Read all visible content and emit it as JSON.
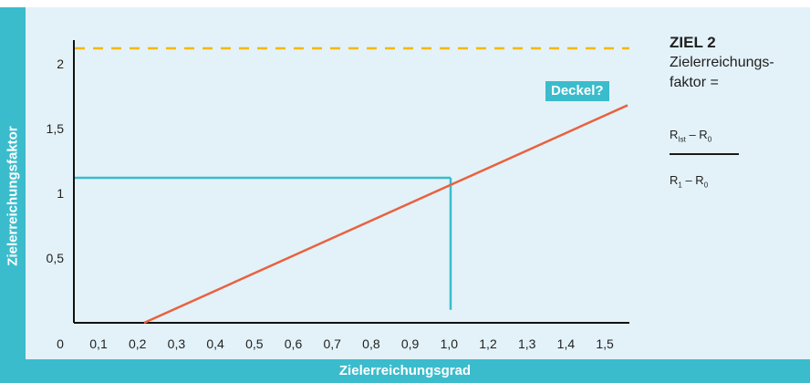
{
  "chart_data": {
    "type": "line",
    "xlabel": "Zielerreichungsgrad",
    "ylabel": "Zielerreichungsfaktor",
    "x_ticks": [
      "0",
      "0,1",
      "0,2",
      "0,3",
      "0,4",
      "0,5",
      "0,6",
      "0,7",
      "0,8",
      "0,9",
      "1,0",
      "1,2",
      "1,3",
      "1,4",
      "1,5"
    ],
    "y_ticks": [
      {
        "label": "0,5",
        "value": 0.5
      },
      {
        "label": "1",
        "value": 1
      },
      {
        "label": "1,5",
        "value": 1.5
      },
      {
        "label": "2",
        "value": 2
      }
    ],
    "ylim": [
      0,
      2.3
    ],
    "series": [
      {
        "type": "line",
        "color": "#e8623f",
        "points": [
          [
            0.2,
            0
          ],
          [
            1.5,
            1.68
          ]
        ]
      },
      {
        "type": "hline",
        "color": "#f5b800",
        "dashed": true,
        "y": 2.12
      }
    ],
    "reference": {
      "color": "#3bbccc",
      "x": 0.98,
      "y": 1.12,
      "y_bottom": 0.1
    },
    "annotation": {
      "text": "Deckel?"
    }
  },
  "sidebar": {
    "title": "ZIEL 2",
    "line1": "Zielerreichungs-",
    "line2": "faktor =",
    "num_R": "R",
    "num_sub1": "Ist",
    "num_mid": " – R",
    "num_sub2": "0",
    "den_R": "R",
    "den_sub1": "1",
    "den_mid": " – R",
    "den_sub2": "0"
  },
  "colors": {
    "accent": "#3bbccc",
    "panel": "#e3f2f8",
    "line": "#e8623f",
    "cap": "#f5b800"
  }
}
